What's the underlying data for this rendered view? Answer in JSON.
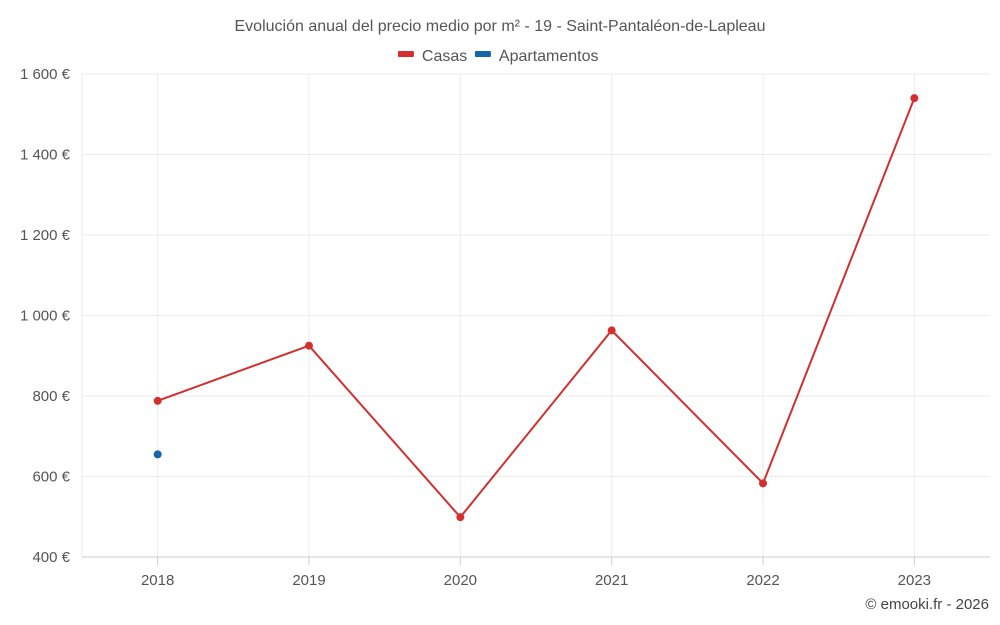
{
  "chart_data": {
    "type": "line",
    "title": "Evolución anual del precio medio por m² - 19 - Saint-Pantaléon-de-Lapleau",
    "categories": [
      "2018",
      "2019",
      "2020",
      "2021",
      "2022",
      "2023"
    ],
    "ylim": [
      400,
      1600
    ],
    "yticks": [
      400,
      600,
      800,
      1000,
      1200,
      1400,
      1600
    ],
    "ytick_labels": [
      "400 €",
      "600 €",
      "800 €",
      "1 000 €",
      "1 200 €",
      "1 400 €",
      "1 600 €"
    ],
    "legend_position": "top-center",
    "grid": true,
    "series": [
      {
        "name": "Casas",
        "color": "#d32f2f",
        "values": [
          788,
          925,
          499,
          963,
          583,
          1540
        ]
      },
      {
        "name": "Apartamentos",
        "color": "#1565a8",
        "values": [
          655,
          null,
          null,
          null,
          null,
          null
        ]
      }
    ]
  },
  "footer": "© emooki.fr - 2026"
}
